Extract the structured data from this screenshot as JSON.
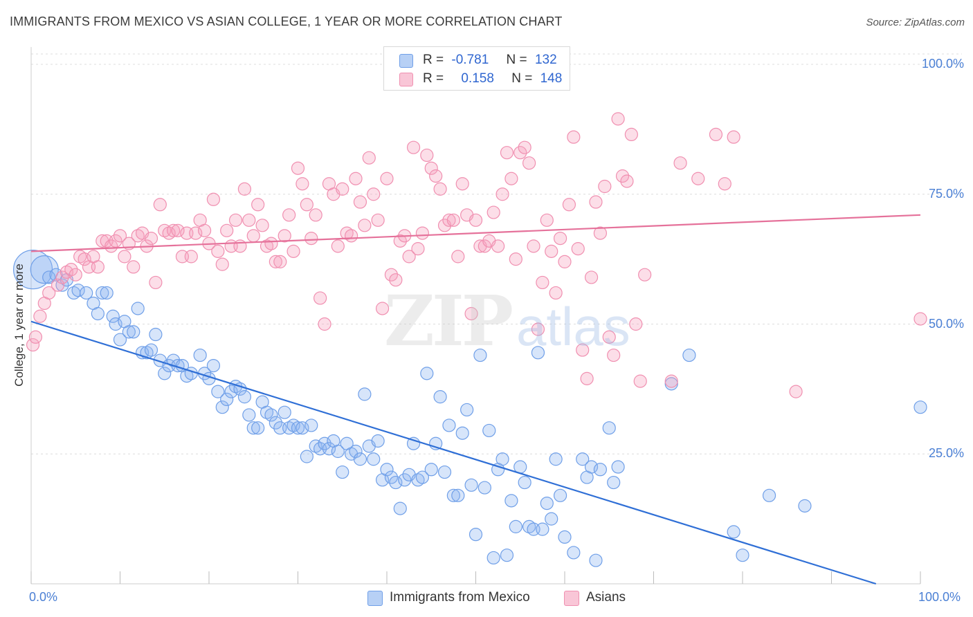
{
  "header": {
    "title": "IMMIGRANTS FROM MEXICO VS ASIAN COLLEGE, 1 YEAR OR MORE CORRELATION CHART",
    "source": "Source: ZipAtlas.com"
  },
  "watermark": {
    "zip": "ZIP",
    "atlas": "atlas"
  },
  "legend": {
    "rows": [
      {
        "r_label": "R =",
        "r_value": "-0.781",
        "n_label": "N =",
        "n_value": "132"
      },
      {
        "r_label": "R =",
        "r_value": "0.158",
        "n_label": "N =",
        "n_value": "148"
      }
    ]
  },
  "bottom_legend": {
    "items": [
      {
        "label": "Immigrants from Mexico"
      },
      {
        "label": "Asians"
      }
    ]
  },
  "chart_data": {
    "type": "scatter",
    "title": "IMMIGRANTS FROM MEXICO VS ASIAN COLLEGE, 1 YEAR OR MORE CORRELATION CHART",
    "xlabel": "",
    "ylabel": "College, 1 year or more",
    "xlim": [
      0,
      100
    ],
    "ylim": [
      0,
      102
    ],
    "x_tick_labels": [
      "0.0%",
      "100.0%"
    ],
    "y_tick_labels": [
      "100.0%",
      "75.0%",
      "50.0%",
      "25.0%"
    ],
    "y_ticks": [
      100,
      75,
      50,
      25
    ],
    "grid": true,
    "legend_position": "top-center",
    "colors": {
      "mexico": "#6f9fe8",
      "asians": "#f08fb0",
      "mexico_line": "#2f6fd6",
      "asians_line": "#e5719a"
    },
    "series": [
      {
        "name": "Immigrants from Mexico",
        "color": "#6f9fe8",
        "trend": {
          "x": [
            0,
            95
          ],
          "y": [
            50.5,
            0
          ]
        },
        "points": [
          [
            0.2,
            60.5
          ],
          [
            1.5,
            60.5
          ],
          [
            2,
            59
          ],
          [
            2.8,
            59.5
          ],
          [
            3.5,
            57.5
          ],
          [
            4,
            58.5
          ],
          [
            4.8,
            56
          ],
          [
            5.3,
            56.5
          ],
          [
            6.2,
            56
          ],
          [
            7,
            54
          ],
          [
            7.5,
            52
          ],
          [
            8,
            56
          ],
          [
            8.5,
            56
          ],
          [
            9.2,
            51.5
          ],
          [
            9.5,
            50
          ],
          [
            10,
            47
          ],
          [
            10.5,
            50.5
          ],
          [
            11,
            48.5
          ],
          [
            11.5,
            48.5
          ],
          [
            12,
            53
          ],
          [
            12.5,
            44.5
          ],
          [
            13,
            44.5
          ],
          [
            13.5,
            45
          ],
          [
            14,
            48
          ],
          [
            14.5,
            43
          ],
          [
            15,
            40.5
          ],
          [
            15.5,
            42
          ],
          [
            16,
            43
          ],
          [
            16.5,
            42
          ],
          [
            17,
            42
          ],
          [
            17.5,
            40
          ],
          [
            18,
            40.5
          ],
          [
            19,
            44
          ],
          [
            19.5,
            40.5
          ],
          [
            20,
            39.5
          ],
          [
            20.5,
            42
          ],
          [
            21,
            37
          ],
          [
            21.5,
            34
          ],
          [
            22,
            35.5
          ],
          [
            22.5,
            37
          ],
          [
            23,
            38
          ],
          [
            23.5,
            37.5
          ],
          [
            24,
            36
          ],
          [
            24.5,
            32.5
          ],
          [
            25,
            30
          ],
          [
            25.5,
            30
          ],
          [
            26,
            35
          ],
          [
            26.5,
            33
          ],
          [
            27,
            32.5
          ],
          [
            27.5,
            31
          ],
          [
            28,
            30
          ],
          [
            28.5,
            33
          ],
          [
            29,
            30
          ],
          [
            29.5,
            30.5
          ],
          [
            30,
            30
          ],
          [
            30.5,
            30
          ],
          [
            31,
            24.5
          ],
          [
            31.5,
            30.5
          ],
          [
            32,
            26.5
          ],
          [
            32.5,
            26
          ],
          [
            33,
            27
          ],
          [
            33.5,
            26
          ],
          [
            34,
            27.5
          ],
          [
            34.5,
            25.5
          ],
          [
            35,
            21.5
          ],
          [
            35.5,
            27
          ],
          [
            36,
            25
          ],
          [
            36.5,
            25.5
          ],
          [
            37,
            24
          ],
          [
            37.5,
            36.5
          ],
          [
            38,
            26.5
          ],
          [
            38.5,
            24
          ],
          [
            39,
            27.5
          ],
          [
            39.5,
            20
          ],
          [
            40,
            22
          ],
          [
            40.5,
            20.5
          ],
          [
            41,
            19.5
          ],
          [
            41.5,
            14.5
          ],
          [
            42,
            20
          ],
          [
            42.5,
            21
          ],
          [
            43,
            27
          ],
          [
            43.5,
            20
          ],
          [
            44,
            20.5
          ],
          [
            44.5,
            40.5
          ],
          [
            45,
            22
          ],
          [
            45.5,
            27
          ],
          [
            46,
            36
          ],
          [
            46.5,
            21.5
          ],
          [
            47,
            30.5
          ],
          [
            47.5,
            17
          ],
          [
            48,
            17
          ],
          [
            48.5,
            29
          ],
          [
            49,
            33.5
          ],
          [
            49.5,
            19
          ],
          [
            50,
            9.5
          ],
          [
            50.5,
            44
          ],
          [
            51,
            18.5
          ],
          [
            51.5,
            29.5
          ],
          [
            52,
            5
          ],
          [
            52.5,
            22
          ],
          [
            53,
            24
          ],
          [
            53.5,
            5.5
          ],
          [
            54,
            16
          ],
          [
            54.5,
            11
          ],
          [
            55,
            22.5
          ],
          [
            55.5,
            19.5
          ],
          [
            56,
            11
          ],
          [
            56.5,
            10.5
          ],
          [
            57,
            44.5
          ],
          [
            57.5,
            10.5
          ],
          [
            58,
            15.5
          ],
          [
            58.5,
            12.5
          ],
          [
            59,
            24
          ],
          [
            59.5,
            17
          ],
          [
            60,
            9
          ],
          [
            61,
            6
          ],
          [
            62,
            24
          ],
          [
            62.5,
            20.5
          ],
          [
            63,
            22.5
          ],
          [
            63.5,
            4.5
          ],
          [
            64,
            22
          ],
          [
            65,
            30
          ],
          [
            65.5,
            19.5
          ],
          [
            66,
            22.5
          ],
          [
            72,
            38.5
          ],
          [
            74,
            44
          ],
          [
            79,
            10
          ],
          [
            80,
            5.5
          ],
          [
            83,
            17
          ],
          [
            87,
            15
          ],
          [
            100,
            34
          ]
        ],
        "sizes": {
          "0.2,60.5": 28,
          "1.5,60.5": 20
        }
      },
      {
        "name": "Asians",
        "color": "#f08fb0",
        "trend": {
          "x": [
            0,
            100
          ],
          "y": [
            64,
            71
          ]
        },
        "points": [
          [
            0.2,
            46
          ],
          [
            0.5,
            47.5
          ],
          [
            1,
            51.5
          ],
          [
            1.5,
            54
          ],
          [
            2,
            56
          ],
          [
            3,
            57.5
          ],
          [
            3.5,
            59
          ],
          [
            4,
            60
          ],
          [
            4.5,
            60.5
          ],
          [
            5,
            59.5
          ],
          [
            5.5,
            63
          ],
          [
            6,
            62.5
          ],
          [
            6.5,
            61
          ],
          [
            7,
            63
          ],
          [
            7.5,
            61
          ],
          [
            8,
            66
          ],
          [
            8.5,
            66
          ],
          [
            9,
            65
          ],
          [
            9.5,
            66
          ],
          [
            10,
            67
          ],
          [
            10.5,
            63
          ],
          [
            11,
            65.5
          ],
          [
            11.5,
            61
          ],
          [
            12,
            67
          ],
          [
            12.5,
            67.5
          ],
          [
            13,
            65
          ],
          [
            13.5,
            66.5
          ],
          [
            14,
            58
          ],
          [
            14.5,
            73
          ],
          [
            15,
            68
          ],
          [
            15.5,
            67.5
          ],
          [
            16,
            68
          ],
          [
            16.5,
            68
          ],
          [
            17,
            63
          ],
          [
            17.5,
            67.5
          ],
          [
            18,
            63
          ],
          [
            18.5,
            67.5
          ],
          [
            19,
            70
          ],
          [
            19.5,
            68
          ],
          [
            20,
            65.5
          ],
          [
            20.5,
            74
          ],
          [
            21,
            64
          ],
          [
            21.5,
            61.5
          ],
          [
            22,
            68
          ],
          [
            22.5,
            65
          ],
          [
            23,
            70
          ],
          [
            23.5,
            65
          ],
          [
            24,
            76
          ],
          [
            24.5,
            70
          ],
          [
            25,
            67
          ],
          [
            25.5,
            73
          ],
          [
            26,
            69
          ],
          [
            26.5,
            65
          ],
          [
            27,
            65.5
          ],
          [
            27.5,
            62
          ],
          [
            28,
            62
          ],
          [
            28.5,
            67
          ],
          [
            29,
            71
          ],
          [
            29.5,
            64
          ],
          [
            30,
            80
          ],
          [
            30.5,
            77
          ],
          [
            31,
            73
          ],
          [
            31.5,
            66.5
          ],
          [
            32,
            71
          ],
          [
            32.5,
            55
          ],
          [
            33,
            50
          ],
          [
            33.5,
            77
          ],
          [
            34,
            75
          ],
          [
            34.5,
            65
          ],
          [
            35,
            76
          ],
          [
            35.5,
            67.5
          ],
          [
            36,
            67
          ],
          [
            36.5,
            78
          ],
          [
            37,
            73.5
          ],
          [
            37.5,
            69
          ],
          [
            38,
            82
          ],
          [
            38.5,
            75
          ],
          [
            39,
            70
          ],
          [
            39.5,
            53
          ],
          [
            40,
            78
          ],
          [
            40.5,
            59.5
          ],
          [
            41,
            58.5
          ],
          [
            41.5,
            66
          ],
          [
            42,
            67
          ],
          [
            42.5,
            63
          ],
          [
            43,
            84
          ],
          [
            43.5,
            64.5
          ],
          [
            44,
            67.5
          ],
          [
            44.5,
            82.5
          ],
          [
            45,
            80
          ],
          [
            45.5,
            78.5
          ],
          [
            46,
            76
          ],
          [
            46.5,
            69
          ],
          [
            47,
            70
          ],
          [
            47.5,
            70
          ],
          [
            48,
            63
          ],
          [
            48.5,
            77
          ],
          [
            49,
            71
          ],
          [
            49.5,
            52
          ],
          [
            50,
            70
          ],
          [
            50.5,
            65
          ],
          [
            51,
            65
          ],
          [
            51.5,
            66
          ],
          [
            52,
            71.5
          ],
          [
            52.5,
            65
          ],
          [
            53,
            75
          ],
          [
            53.5,
            83
          ],
          [
            54,
            78
          ],
          [
            54.5,
            62.5
          ],
          [
            55,
            83
          ],
          [
            55.5,
            84
          ],
          [
            56,
            81
          ],
          [
            56.5,
            65
          ],
          [
            57,
            49
          ],
          [
            57.5,
            58
          ],
          [
            58,
            70
          ],
          [
            58.5,
            64
          ],
          [
            59,
            56
          ],
          [
            59.5,
            66.5
          ],
          [
            60,
            62
          ],
          [
            60.5,
            73
          ],
          [
            61,
            86
          ],
          [
            61.5,
            64.5
          ],
          [
            62,
            45
          ],
          [
            62.5,
            39.5
          ],
          [
            63,
            59
          ],
          [
            63.5,
            73.5
          ],
          [
            64,
            67.5
          ],
          [
            64.5,
            76.5
          ],
          [
            65,
            47.5
          ],
          [
            65.5,
            44
          ],
          [
            66,
            89.5
          ],
          [
            66.5,
            78.5
          ],
          [
            67,
            77.5
          ],
          [
            67.5,
            86.5
          ],
          [
            68,
            50
          ],
          [
            68.5,
            39
          ],
          [
            69,
            59.5
          ],
          [
            72,
            39
          ],
          [
            73,
            81
          ],
          [
            75,
            78
          ],
          [
            77,
            86.5
          ],
          [
            78,
            77
          ],
          [
            79,
            86
          ],
          [
            86,
            37
          ],
          [
            100,
            51
          ]
        ]
      }
    ]
  }
}
